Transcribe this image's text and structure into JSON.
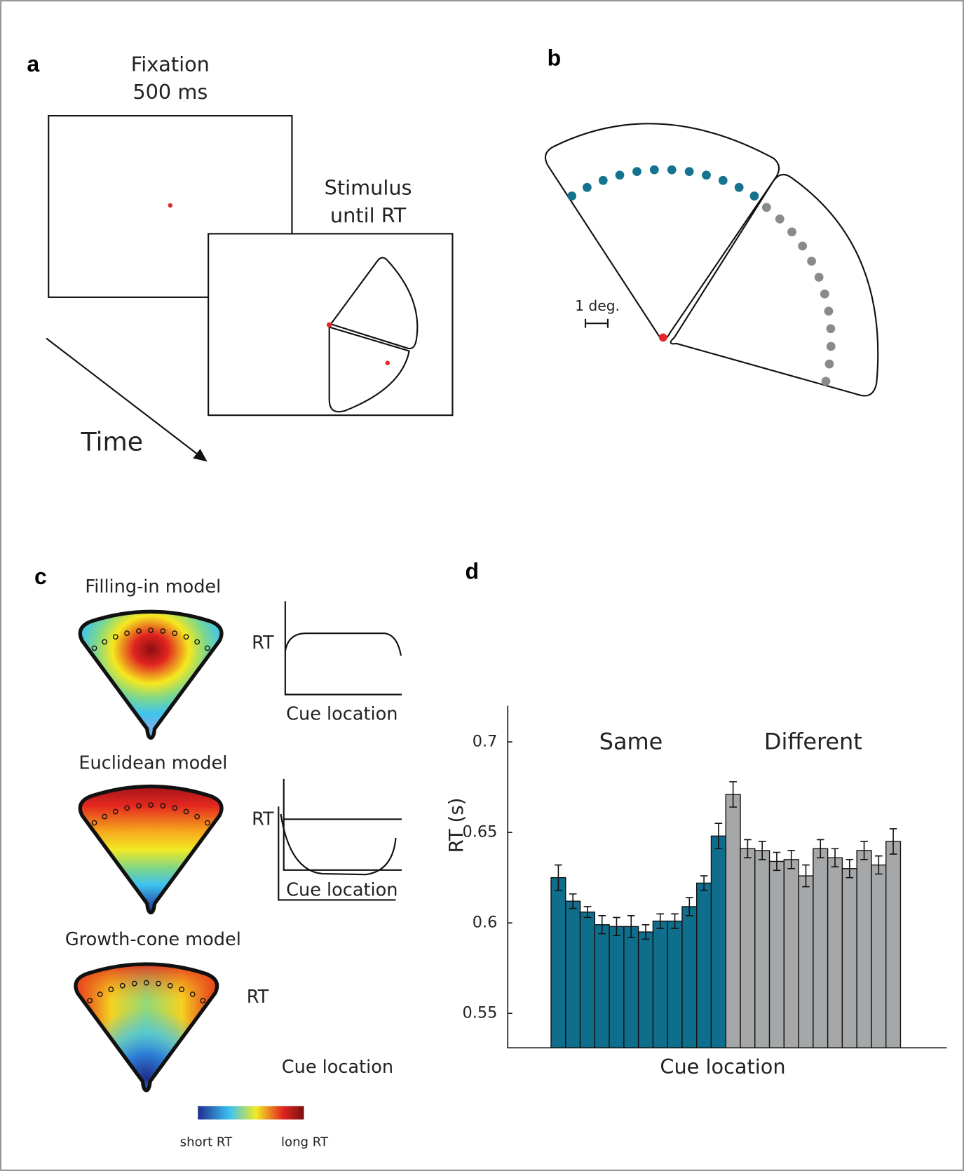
{
  "panels": {
    "a": {
      "label": "a",
      "fixation_title": "Fixation",
      "fixation_time": "500 ms",
      "stimulus_title": "Stimulus",
      "stimulus_time": "until RT",
      "time_label": "Time"
    },
    "b": {
      "label": "b",
      "scale_label": "1 deg."
    },
    "c": {
      "label": "c",
      "models": [
        {
          "title": "Filling-in model",
          "y_label": "RT",
          "x_label": "Cue location"
        },
        {
          "title": "Euclidean model",
          "y_label": "RT",
          "x_label": "Cue location"
        },
        {
          "title": "Growth-cone model",
          "y_label": "RT",
          "x_label": "Cue location"
        }
      ],
      "colorbar_low": "short RT",
      "colorbar_high": "long RT"
    },
    "d": {
      "label": "d"
    }
  },
  "chart_data": {
    "type": "bar",
    "ylabel": "RT (s)",
    "xlabel": "Cue location",
    "ylim": [
      0.531,
      0.72
    ],
    "yticks": [
      0.55,
      0.6,
      0.65,
      0.7
    ],
    "series": [
      {
        "name": "Same",
        "color": "#0e6e8c",
        "values": [
          0.625,
          0.612,
          0.606,
          0.599,
          0.598,
          0.598,
          0.595,
          0.601,
          0.601,
          0.609,
          0.622,
          0.648
        ],
        "errors": [
          0.007,
          0.004,
          0.003,
          0.005,
          0.005,
          0.006,
          0.004,
          0.004,
          0.004,
          0.005,
          0.004,
          0.007
        ]
      },
      {
        "name": "Different",
        "color": "#a6a7a9",
        "values": [
          0.671,
          0.641,
          0.64,
          0.634,
          0.635,
          0.626,
          0.641,
          0.636,
          0.63,
          0.64,
          0.632,
          0.645
        ],
        "errors": [
          0.007,
          0.005,
          0.005,
          0.005,
          0.005,
          0.006,
          0.005,
          0.005,
          0.005,
          0.005,
          0.005,
          0.007
        ]
      }
    ]
  }
}
